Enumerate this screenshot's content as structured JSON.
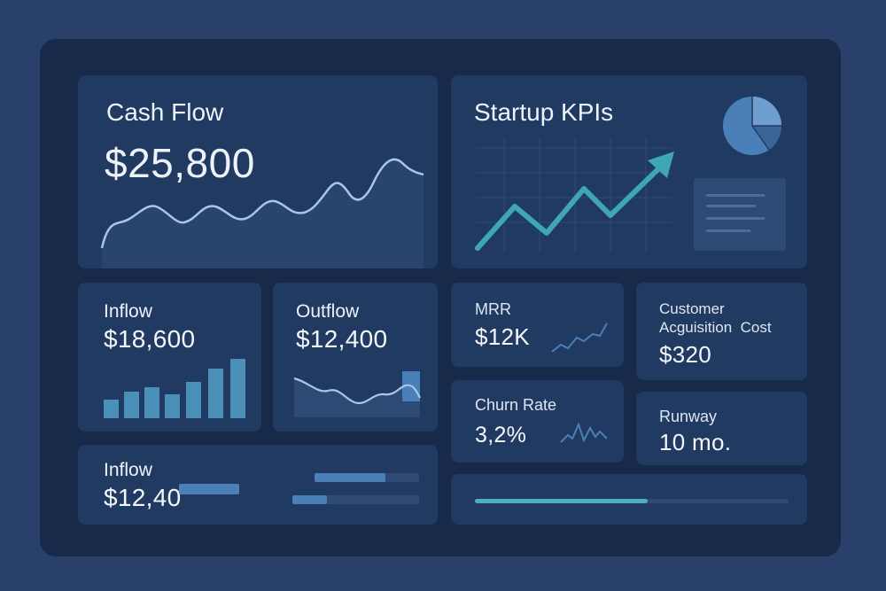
{
  "cash_flow": {
    "title": "Cash Flow",
    "amount": "$25,800"
  },
  "startup_kpis": {
    "title": "Startup KPIs"
  },
  "inflow": {
    "label": "Inflow",
    "amount": "$18,600"
  },
  "outflow": {
    "label": "Outflow",
    "amount": "$12,400"
  },
  "inflow_bottom": {
    "label": "Inflow",
    "amount": "$12,40"
  },
  "mrr": {
    "label": "MRR",
    "amount": "$12K"
  },
  "cac": {
    "label_line1": "Customer",
    "label_line2": "Acguisition  Cost",
    "amount": "$320"
  },
  "churn": {
    "label": "Churn Rate",
    "amount": "3,2%"
  },
  "runway": {
    "label": "Runway",
    "amount": "10 mo."
  },
  "progress": {
    "fraction": 0.55
  },
  "colors": {
    "background": "#28406a",
    "panel": "#172a49",
    "card": "#213a61",
    "accent_teal": "#3fa7b3",
    "accent_blue": "#4a7fb8",
    "line_light": "#9fc2e6"
  }
}
